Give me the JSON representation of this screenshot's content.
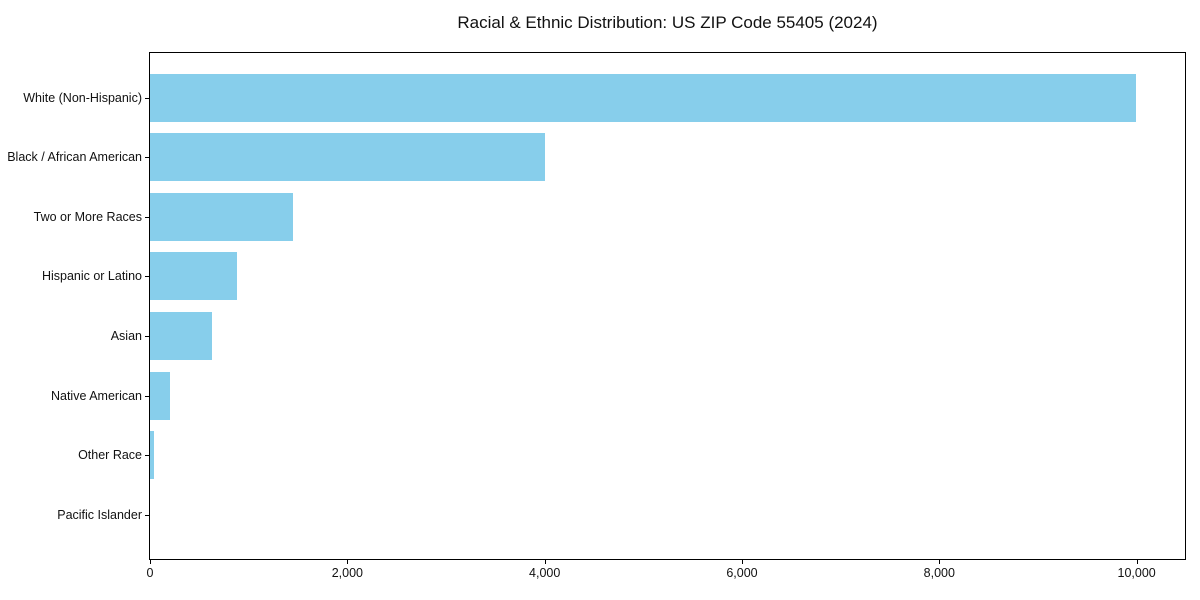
{
  "title": "Racial & Ethnic Distribution: US ZIP Code 55405 (2024)",
  "chart_data": {
    "type": "bar",
    "orientation": "horizontal",
    "title": "Racial & Ethnic Distribution: US ZIP Code 55405 (2024)",
    "categories": [
      "White (Non-Hispanic)",
      "Black / African American",
      "Two or More Races",
      "Hispanic or Latino",
      "Asian",
      "Native American",
      "Other Race",
      "Pacific Islander"
    ],
    "values": [
      9990,
      4000,
      1450,
      880,
      625,
      200,
      40,
      0
    ],
    "xlabel": "",
    "ylabel": "",
    "xlim": [
      0,
      10490
    ],
    "xticks": [
      0,
      2000,
      4000,
      6000,
      8000,
      10000
    ],
    "xtick_labels": [
      "0",
      "2,000",
      "4,000",
      "6,000",
      "8,000",
      "10,000"
    ],
    "bar_color": "#87CEEB",
    "axis_color": "#000000",
    "background_color": "#ffffff",
    "grid": false,
    "legend": null
  }
}
